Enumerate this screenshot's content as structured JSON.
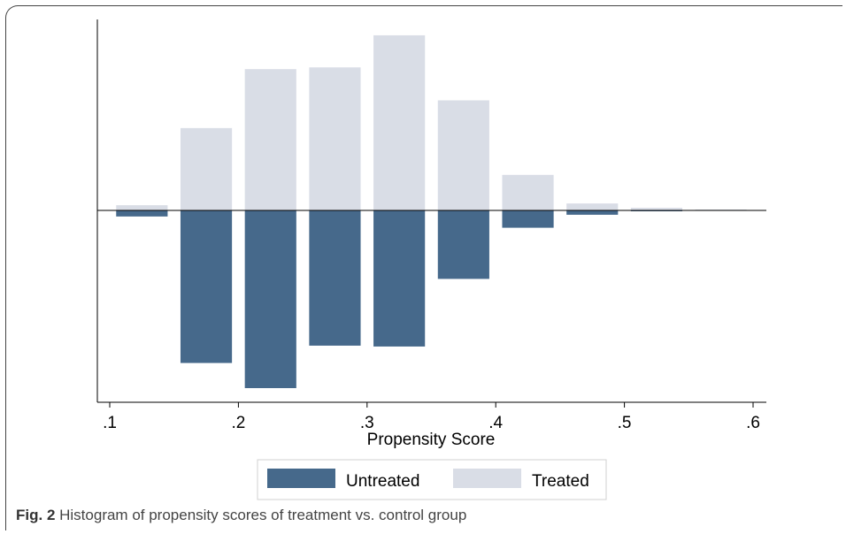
{
  "chart_data": {
    "type": "bar",
    "xlabel": "Propensity Score",
    "ylabel": "",
    "xlim": [
      0.1,
      0.6
    ],
    "x_ticks": [
      ".1",
      ".2",
      ".3",
      ".4",
      ".5",
      ".6"
    ],
    "x_tick_values": [
      0.1,
      0.2,
      0.3,
      0.4,
      0.5,
      0.6
    ],
    "bin_starts": [
      0.105,
      0.155,
      0.205,
      0.255,
      0.305,
      0.355,
      0.405,
      0.455,
      0.505,
      0.555
    ],
    "bin_width": 0.04,
    "ylim": [
      -205,
      205
    ],
    "series": [
      {
        "name": "Untreated",
        "color": "#46698b",
        "direction": "down",
        "values": [
          7,
          176,
          205,
          156,
          157,
          79,
          20,
          5,
          1,
          0
        ]
      },
      {
        "name": "Treated",
        "color": "#d9dde6",
        "direction": "up",
        "values": [
          6,
          95,
          163,
          165,
          202,
          127,
          41,
          8,
          3,
          1
        ]
      }
    ],
    "legend": {
      "position": "bottom"
    },
    "grid": false
  },
  "caption": {
    "label": "Fig. 2",
    "text": " Histogram of propensity scores of treatment vs. control group"
  }
}
